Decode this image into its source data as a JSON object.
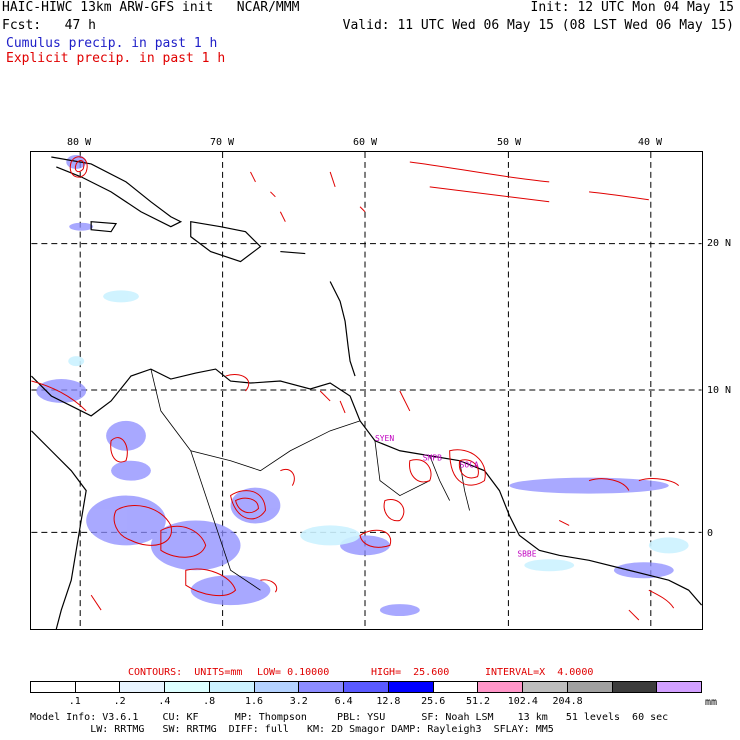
{
  "header": {
    "title_left": "HAIC-HIWC 13km ARW-GFS init   NCAR/MMM",
    "init": "Init: 12 UTC Mon 04 May 15",
    "fcst": "Fcst:   47 h",
    "valid": "Valid: 11 UTC Wed 06 May 15 (08 LST Wed 06 May 15)",
    "legend_cumulus": "Cumulus precip. in past 1 h",
    "legend_explicit": "Explicit precip. in past 1 h"
  },
  "map": {
    "lon_labels": [
      "80 W",
      "70 W",
      "60 W",
      "50 W",
      "40 W"
    ],
    "lat_labels": [
      "20 N",
      "10 N",
      "0"
    ],
    "stations": [
      "SYEN",
      "SMPB",
      "SOCA",
      "SBBE"
    ],
    "colors": {
      "coastline": "#000000",
      "grid": "#000000",
      "explicit": "#e00000",
      "cumulus": "#5a5aff",
      "station": "#c000c0"
    }
  },
  "contours": {
    "units_label": "CONTOURS:  UNITS=mm",
    "low": "LOW= 0.10000",
    "high": "HIGH=  25.600",
    "interval": "INTERVAL=X  4.0000"
  },
  "colorbar": {
    "colors": [
      "#ffffff",
      "#ffffff",
      "#e8f4ff",
      "#ddffff",
      "#ccf2ff",
      "#b4d2ff",
      "#8c8cff",
      "#5a5aff",
      "#0000ff",
      "#ffffff",
      "#ff96c8",
      "#bebebe",
      "#a0a0a0",
      "#3c3c3c",
      "#d2a0ff"
    ],
    "ticks": [
      ".1",
      ".2",
      ".4",
      ".8",
      "1.6",
      "3.2",
      "6.4",
      "12.8",
      "25.6",
      "51.2",
      "102.4",
      "204.8"
    ],
    "units": "mm"
  },
  "model_info": {
    "line1": "Model Info: V3.6.1    CU: KF      MP: Thompson     PBL: YSU      SF: Noah LSM    13 km   51 levels  60 sec",
    "line2": "          LW: RRTMG   SW: RRTMG  DIFF: full   KM: 2D Smagor DAMP: Rayleigh3  SFLAY: MM5"
  }
}
